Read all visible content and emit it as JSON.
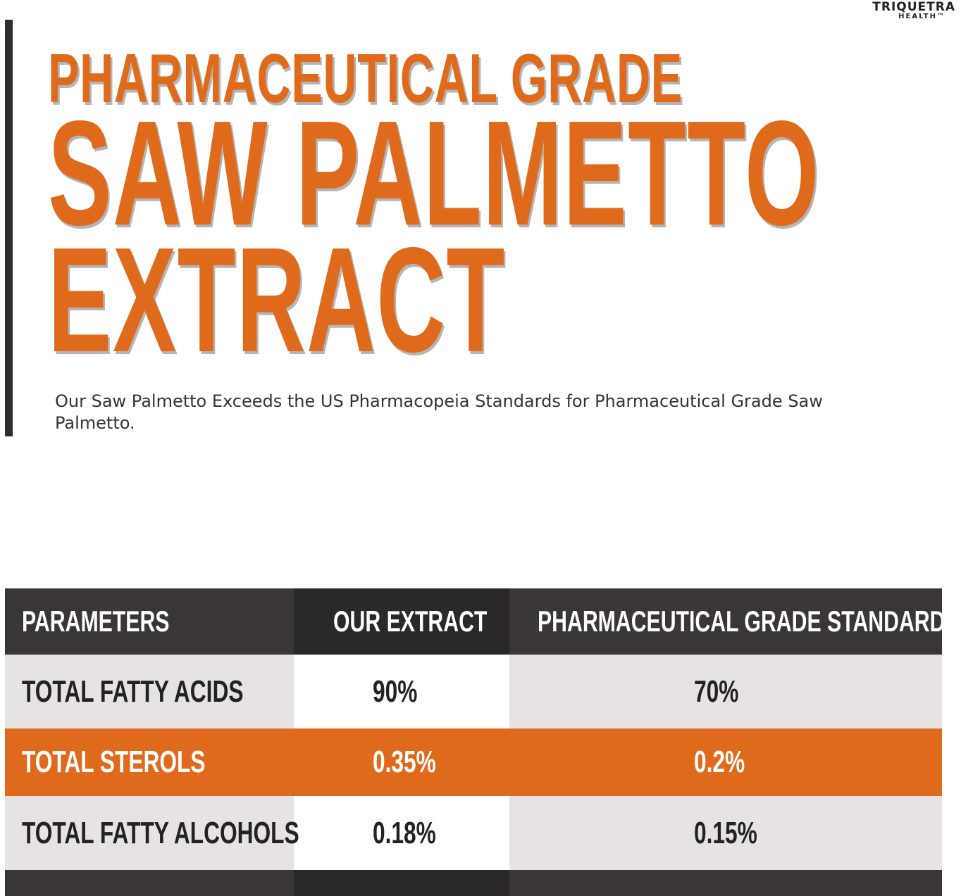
{
  "brand": {
    "line1": "TRIQUETRA",
    "line2": "HEALTH™"
  },
  "headline": {
    "subtitle": "PHARMACEUTICAL GRADE",
    "title_line1": "SAW PALMETTO",
    "title_line2": "EXTRACT"
  },
  "intro": "Our Saw Palmetto Exceeds the US Pharmacopeia Standards for Pharmaceutical Grade Saw Palmetto.",
  "table": {
    "headers": [
      "PARAMETERS",
      "OUR EXTRACT",
      "PHARMACEUTICAL GRADE STANDARDS"
    ],
    "rows": [
      {
        "parameter": "TOTAL FATTY ACIDS",
        "ours": "90%",
        "standard": "70%"
      },
      {
        "parameter": "TOTAL STEROLS",
        "ours": "0.35%",
        "standard": "0.2%"
      },
      {
        "parameter": "TOTAL FATTY ALCOHOLS",
        "ours": "0.18%",
        "standard": "0.15%"
      }
    ]
  },
  "colors": {
    "accent": "#e06a1b",
    "dark": "#3a3636",
    "row_grey": "#e7e3e3"
  }
}
